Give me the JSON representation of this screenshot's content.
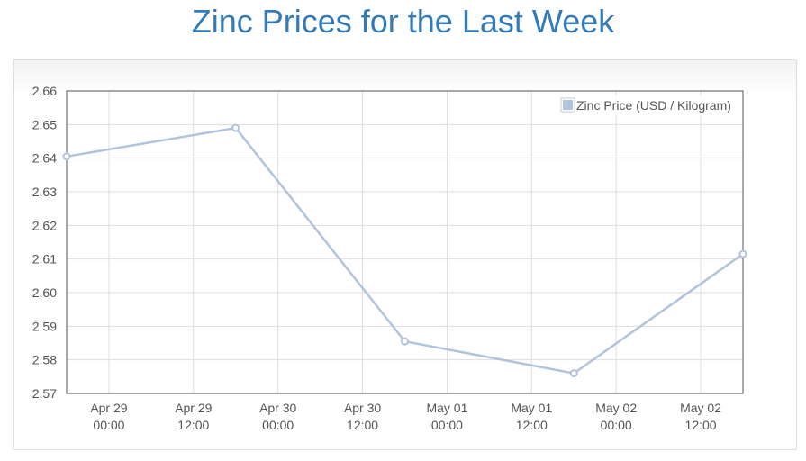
{
  "page": {
    "title": "Zinc Prices for the Last Week"
  },
  "chart_data": {
    "type": "line",
    "title": "",
    "xlabel": "",
    "ylabel": "",
    "series": [
      {
        "name": "Zinc Price (USD / Kilogram)",
        "color": "#b0c4de",
        "points": [
          {
            "x": "2024-04-28T18:00",
            "y": 2.6405
          },
          {
            "x": "2024-04-29T18:00",
            "y": 2.649
          },
          {
            "x": "2024-04-30T18:00",
            "y": 2.5855
          },
          {
            "x": "2024-05-01T18:00",
            "y": 2.576
          },
          {
            "x": "2024-05-02T18:00",
            "y": 2.6115
          }
        ]
      }
    ],
    "ylim": [
      2.57,
      2.66
    ],
    "xlim": [
      "2024-04-28T18:00",
      "2024-05-02T18:00"
    ],
    "y_ticks": [
      "2.66",
      "2.65",
      "2.64",
      "2.63",
      "2.62",
      "2.61",
      "2.60",
      "2.59",
      "2.58",
      "2.57"
    ],
    "x_ticks": [
      {
        "x": "2024-04-29T00:00",
        "line1": "Apr 29",
        "line2": "00:00"
      },
      {
        "x": "2024-04-29T12:00",
        "line1": "Apr 29",
        "line2": "12:00"
      },
      {
        "x": "2024-04-30T00:00",
        "line1": "Apr 30",
        "line2": "00:00"
      },
      {
        "x": "2024-04-30T12:00",
        "line1": "Apr 30",
        "line2": "12:00"
      },
      {
        "x": "2024-05-01T00:00",
        "line1": "May 01",
        "line2": "00:00"
      },
      {
        "x": "2024-05-01T12:00",
        "line1": "May 01",
        "line2": "12:00"
      },
      {
        "x": "2024-05-02T00:00",
        "line1": "May 02",
        "line2": "00:00"
      },
      {
        "x": "2024-05-02T12:00",
        "line1": "May 02",
        "line2": "12:00"
      }
    ],
    "grid": true,
    "legend": "top-right"
  }
}
